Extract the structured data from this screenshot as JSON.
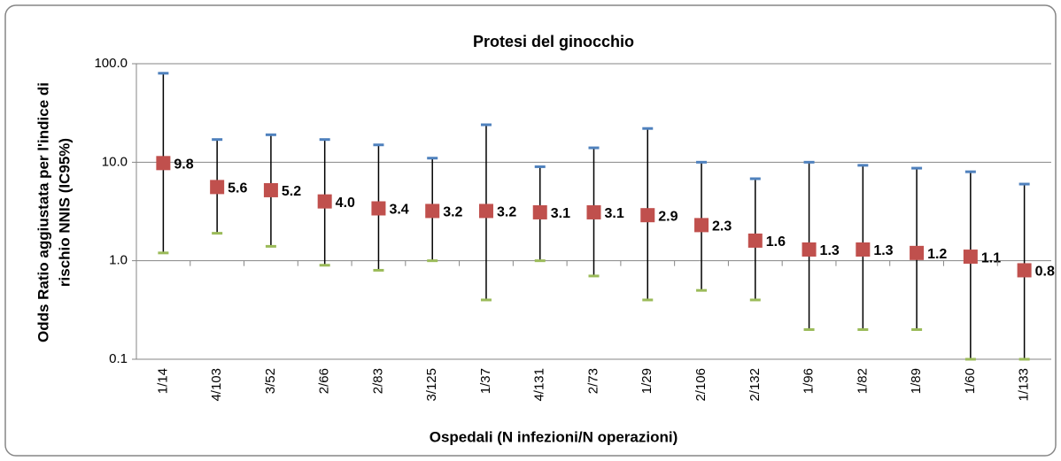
{
  "chart_data": {
    "type": "errorbar",
    "title": "Protesi del ginocchio",
    "xlabel": "Ospedali (N infezioni/N operazioni)",
    "ylabel": [
      "Odds Ratio aggiustata per l'indice di",
      "rischio NNIS (IC95%)"
    ],
    "categories": [
      "1/14",
      "4/103",
      "3/52",
      "2/66",
      "2/83",
      "3/125",
      "1/37",
      "4/131",
      "2/73",
      "1/29",
      "2/106",
      "2/132",
      "1/96",
      "1/82",
      "1/89",
      "1/60",
      "1/133"
    ],
    "values": [
      9.8,
      5.6,
      5.2,
      4.0,
      3.4,
      3.2,
      3.2,
      3.1,
      3.1,
      2.9,
      2.3,
      1.6,
      1.3,
      1.3,
      1.2,
      1.1,
      0.8
    ],
    "value_labels": [
      "9.8",
      "5.6",
      "5.2",
      "4.0",
      "3.4",
      "3.2",
      "3.2",
      "3.1",
      "3.1",
      "2.9",
      "2.3",
      "1.6",
      "1.3",
      "1.3",
      "1.2",
      "1.1",
      "0.8"
    ],
    "ci_lower": [
      1.2,
      1.9,
      1.4,
      0.9,
      0.8,
      1.0,
      0.4,
      1.0,
      0.7,
      0.4,
      0.5,
      0.4,
      0.2,
      0.2,
      0.2,
      0.1,
      0.1
    ],
    "ci_upper": [
      80,
      17,
      19,
      17,
      15,
      11,
      24,
      9,
      14,
      22,
      10,
      6.8,
      10,
      9.3,
      8.7,
      8.0,
      6.0
    ],
    "color": "#c0504d",
    "upper_color": "#4f81bd",
    "lower_color": "#9bbb59",
    "log_y": true,
    "ylim": [
      0.1,
      100
    ],
    "yticks": [
      0.1,
      {
        "value": 1,
        "label": "1.0"
      },
      {
        "value": 10,
        "label": "10.0"
      },
      {
        "value": 100,
        "label": "100.0"
      }
    ],
    "grid": true
  }
}
